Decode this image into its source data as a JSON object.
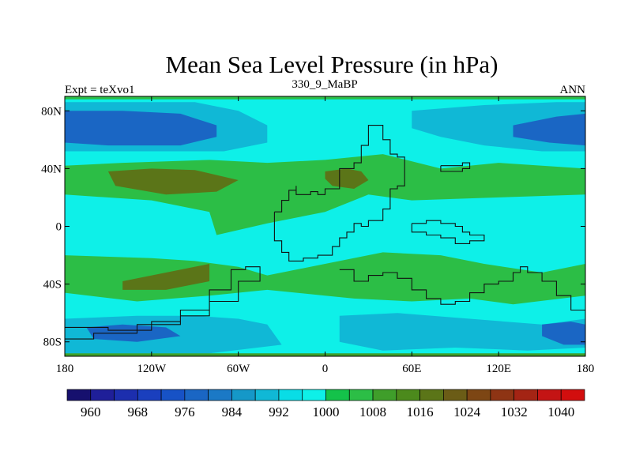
{
  "chart_data": {
    "type": "heatmap",
    "title": "Mean Sea Level Pressure (in hPa)",
    "left_label": "Expt = teXvo1",
    "center_label": "330_9_MaBP",
    "right_label": "ANN",
    "x_ticks": [
      "180",
      "120W",
      "60W",
      "0",
      "60E",
      "120E",
      "180"
    ],
    "y_ticks": [
      "80N",
      "40N",
      "0",
      "40S",
      "80S"
    ],
    "xlim": [
      -180,
      180
    ],
    "ylim": [
      -90,
      90
    ],
    "colorbar": {
      "levels": [
        960,
        964,
        968,
        972,
        976,
        980,
        984,
        988,
        992,
        996,
        1000,
        1004,
        1008,
        1012,
        1016,
        1020,
        1024,
        1028,
        1032,
        1036,
        1040
      ],
      "labels": [
        "960",
        "968",
        "976",
        "984",
        "992",
        "1000",
        "1008",
        "1016",
        "1024",
        "1032",
        "1040"
      ],
      "colors": [
        "#16106e",
        "#1f1f99",
        "#1c2eae",
        "#1a3fbe",
        "#1752c6",
        "#1a66c4",
        "#1b79c6",
        "#1598c8",
        "#10b8d6",
        "#09dde6",
        "#0ef0e8",
        "#14c24a",
        "#2cbe46",
        "#3f9e2a",
        "#4c8a1c",
        "#5b7518",
        "#6b5c16",
        "#7d4614",
        "#8e3414",
        "#a42414",
        "#c41414",
        "#d20e0e"
      ]
    },
    "background_level_color": "#0ef0e8",
    "regions": [
      {
        "name": "north-pacific-low-outer",
        "color": "#10b8d6",
        "lon": [
          -180,
          -90,
          -60,
          -40,
          -40,
          -70,
          -100,
          -180
        ],
        "lat": [
          86,
          86,
          80,
          70,
          58,
          52,
          52,
          52
        ]
      },
      {
        "name": "north-pacific-low-core",
        "color": "#1a66c4",
        "lon": [
          -180,
          -140,
          -100,
          -75,
          -75,
          -100,
          -150,
          -180
        ],
        "lat": [
          80,
          80,
          78,
          70,
          62,
          56,
          56,
          58
        ]
      },
      {
        "name": "north-atlantic-low-outer",
        "color": "#10b8d6",
        "lon": [
          60,
          110,
          160,
          180,
          180,
          150,
          110,
          80,
          60
        ],
        "lat": [
          80,
          84,
          86,
          86,
          52,
          52,
          56,
          62,
          68
        ]
      },
      {
        "name": "north-atlantic-low-core",
        "color": "#1a66c4",
        "lon": [
          130,
          160,
          180,
          180,
          155,
          130
        ],
        "lat": [
          70,
          76,
          78,
          56,
          58,
          62
        ]
      },
      {
        "name": "northern-high-belt",
        "color": "#2cbe46",
        "lon": [
          -180,
          -140,
          -80,
          -40,
          0,
          40,
          80,
          120,
          180,
          180,
          120,
          60,
          30,
          0,
          -40,
          -75,
          -80,
          -120,
          -180
        ],
        "lat": [
          42,
          44,
          46,
          44,
          46,
          50,
          40,
          44,
          40,
          22,
          20,
          18,
          22,
          10,
          2,
          -6,
          10,
          18,
          22
        ]
      },
      {
        "name": "north-pacific-high",
        "color": "#5b7518",
        "lon": [
          -150,
          -120,
          -90,
          -60,
          -75,
          -110,
          -145
        ],
        "lat": [
          38,
          40,
          39,
          32,
          24,
          22,
          28
        ]
      },
      {
        "name": "tethys-high",
        "color": "#5b7518",
        "lon": [
          0,
          15,
          25,
          30,
          20,
          5,
          0
        ],
        "lat": [
          38,
          40,
          38,
          32,
          26,
          28,
          33
        ]
      },
      {
        "name": "southern-high-belt",
        "color": "#2cbe46",
        "lon": [
          -180,
          -120,
          -90,
          -60,
          -40,
          0,
          40,
          80,
          110,
          150,
          180,
          180,
          130,
          100,
          60,
          20,
          0,
          -40,
          -80,
          -130,
          -180
        ],
        "lat": [
          -20,
          -22,
          -24,
          -28,
          -34,
          -26,
          -18,
          -20,
          -26,
          -32,
          -26,
          -48,
          -54,
          -50,
          -52,
          -50,
          -48,
          -44,
          -48,
          -52,
          -46
        ]
      },
      {
        "name": "south-pacific-high",
        "color": "#5b7518",
        "lon": [
          -140,
          -110,
          -80,
          -80,
          -110,
          -140
        ],
        "lat": [
          -38,
          -32,
          -26,
          -38,
          -44,
          -44
        ]
      },
      {
        "name": "southern-ocean-trough",
        "color": "#10b8d6",
        "lon": [
          -180,
          -130,
          -90,
          -60,
          -40,
          -30,
          -80,
          -130,
          -180
        ],
        "lat": [
          -64,
          -62,
          -62,
          -64,
          -68,
          -82,
          -88,
          -88,
          -88
        ]
      },
      {
        "name": "southern-ocean-low-core",
        "color": "#1a66c4",
        "lon": [
          -165,
          -140,
          -110,
          -100,
          -130,
          -160
        ],
        "lat": [
          -70,
          -68,
          -70,
          -76,
          -80,
          -78
        ]
      },
      {
        "name": "southern-ocean-east-trough",
        "color": "#10b8d6",
        "lon": [
          10,
          50,
          100,
          150,
          180,
          180,
          140,
          90,
          40,
          10
        ],
        "lat": [
          -62,
          -60,
          -64,
          -68,
          -64,
          -84,
          -86,
          -84,
          -86,
          -80
        ]
      },
      {
        "name": "southern-ocean-east-core",
        "color": "#1a66c4",
        "lon": [
          150,
          170,
          180,
          180,
          165,
          150
        ],
        "lat": [
          -68,
          -66,
          -68,
          -82,
          -82,
          -76
        ]
      },
      {
        "name": "polar-band-south",
        "color": "#3f9e2a",
        "lon": [
          -180,
          180,
          180,
          -180
        ],
        "lat": [
          -88,
          -88,
          -90,
          -90
        ]
      },
      {
        "name": "polar-band-north",
        "color": "#2cbe46",
        "lon": [
          -180,
          180,
          180,
          -180
        ],
        "lat": [
          90,
          90,
          88,
          88
        ]
      }
    ],
    "coastlines": [
      {
        "name": "north-continent",
        "lon": [
          -35,
          -30,
          -25,
          -20,
          -20,
          -10,
          -5,
          0,
          10,
          20,
          25,
          30,
          40,
          40,
          45,
          50,
          55,
          55,
          50,
          45,
          45,
          40,
          30,
          25,
          20,
          15,
          10,
          5,
          -5,
          -15,
          -25,
          -30,
          -35,
          -35
        ],
        "lat": [
          10,
          18,
          25,
          28,
          22,
          24,
          22,
          26,
          40,
          44,
          56,
          70,
          68,
          60,
          50,
          48,
          40,
          28,
          26,
          20,
          12,
          4,
          0,
          2,
          -4,
          -8,
          -14,
          -20,
          -22,
          -24,
          -18,
          -10,
          -2,
          10
        ]
      },
      {
        "name": "south-continent-arc",
        "lon": [
          -180,
          -150,
          -120,
          -100,
          -80,
          -65,
          -55,
          -45,
          -45,
          -60,
          -80,
          -100,
          -130,
          -160,
          -180
        ],
        "lat": [
          -70,
          -72,
          -66,
          -58,
          -44,
          -30,
          -28,
          -30,
          -38,
          -52,
          -62,
          -68,
          -74,
          -78,
          -80
        ]
      },
      {
        "name": "southern-landmass",
        "lon": [
          10,
          20,
          30,
          40,
          50,
          60,
          70,
          80,
          90,
          100,
          110,
          120,
          130,
          135,
          140,
          150,
          160,
          170,
          180
        ],
        "lat": [
          -30,
          -38,
          -34,
          -32,
          -36,
          -44,
          -50,
          -54,
          -52,
          -46,
          -40,
          -38,
          -32,
          -28,
          -32,
          -38,
          -48,
          -58,
          -64
        ]
      },
      {
        "name": "east-islands",
        "lon": [
          60,
          70,
          80,
          90,
          95,
          100,
          110,
          100,
          90,
          80,
          70,
          60
        ],
        "lat": [
          2,
          4,
          2,
          0,
          -4,
          -6,
          -10,
          -12,
          -8,
          -6,
          -4,
          2
        ]
      },
      {
        "name": "northeast-island",
        "lon": [
          80,
          95,
          100,
          95,
          80,
          80
        ],
        "lat": [
          42,
          44,
          40,
          38,
          38,
          42
        ]
      }
    ]
  }
}
